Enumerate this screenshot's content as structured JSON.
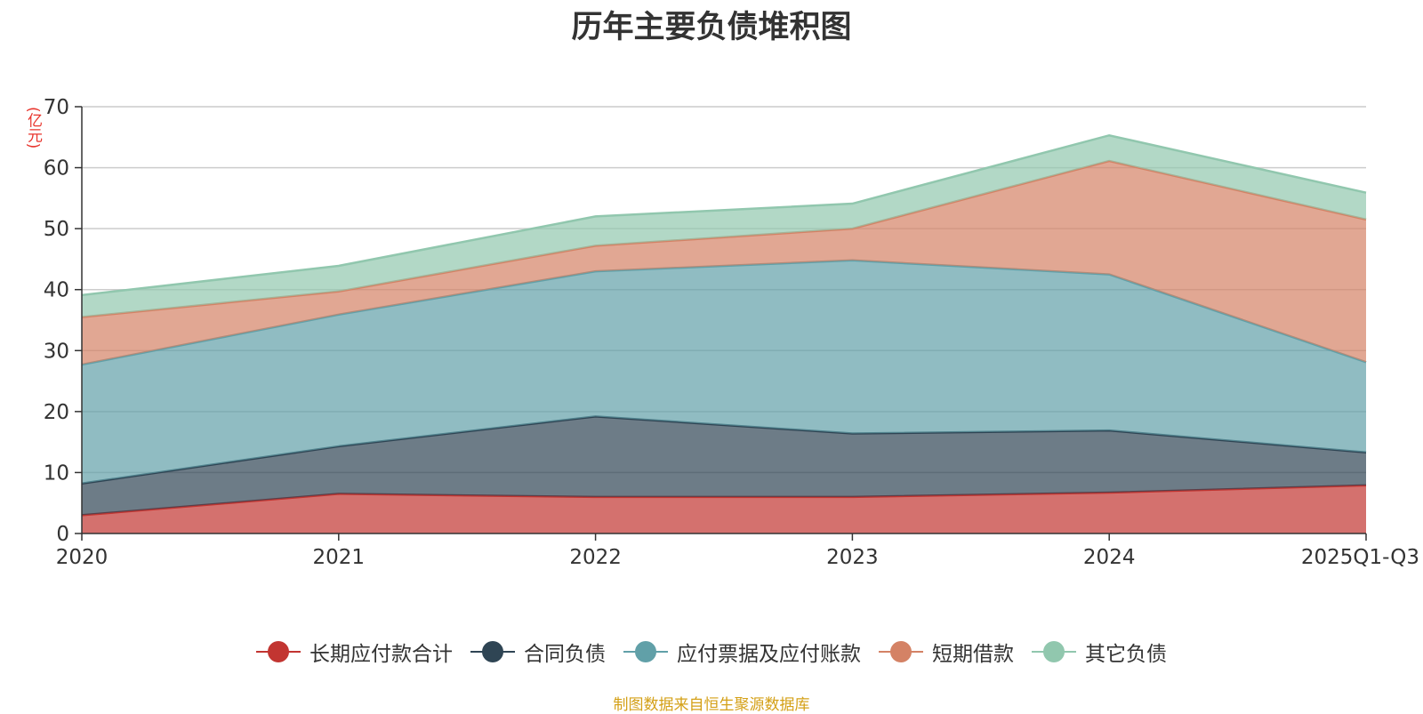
{
  "chart_data": {
    "type": "area",
    "stacked": true,
    "title": "历年主要负债堆积图",
    "unit_label": "(亿元)",
    "categories": [
      "2020",
      "2021",
      "2022",
      "2023",
      "2024",
      "2025Q1-Q3"
    ],
    "ylim": [
      0,
      70
    ],
    "yticks": [
      "0",
      "10",
      "20",
      "30",
      "40",
      "50",
      "60",
      "70"
    ],
    "grid": true,
    "legend_position": "bottom",
    "series": [
      {
        "name": "长期应付款合计",
        "color": "#c23531",
        "values": [
          3.0,
          6.5,
          6.0,
          6.0,
          6.7,
          7.9
        ]
      },
      {
        "name": "合同负债",
        "color": "#2f4554",
        "values": [
          5.2,
          7.8,
          13.2,
          10.4,
          10.2,
          5.4
        ]
      },
      {
        "name": "应付票据及应付账款",
        "color": "#61a0a8",
        "values": [
          19.5,
          21.6,
          23.8,
          28.4,
          25.6,
          14.8
        ]
      },
      {
        "name": "短期借款",
        "color": "#d48265",
        "values": [
          7.8,
          3.8,
          4.2,
          5.2,
          18.6,
          23.4
        ]
      },
      {
        "name": "其它负债",
        "color": "#91c7ae",
        "values": [
          3.6,
          4.2,
          4.8,
          4.1,
          4.2,
          4.4
        ]
      }
    ]
  },
  "source_note": "制图数据来自恒生聚源数据库"
}
